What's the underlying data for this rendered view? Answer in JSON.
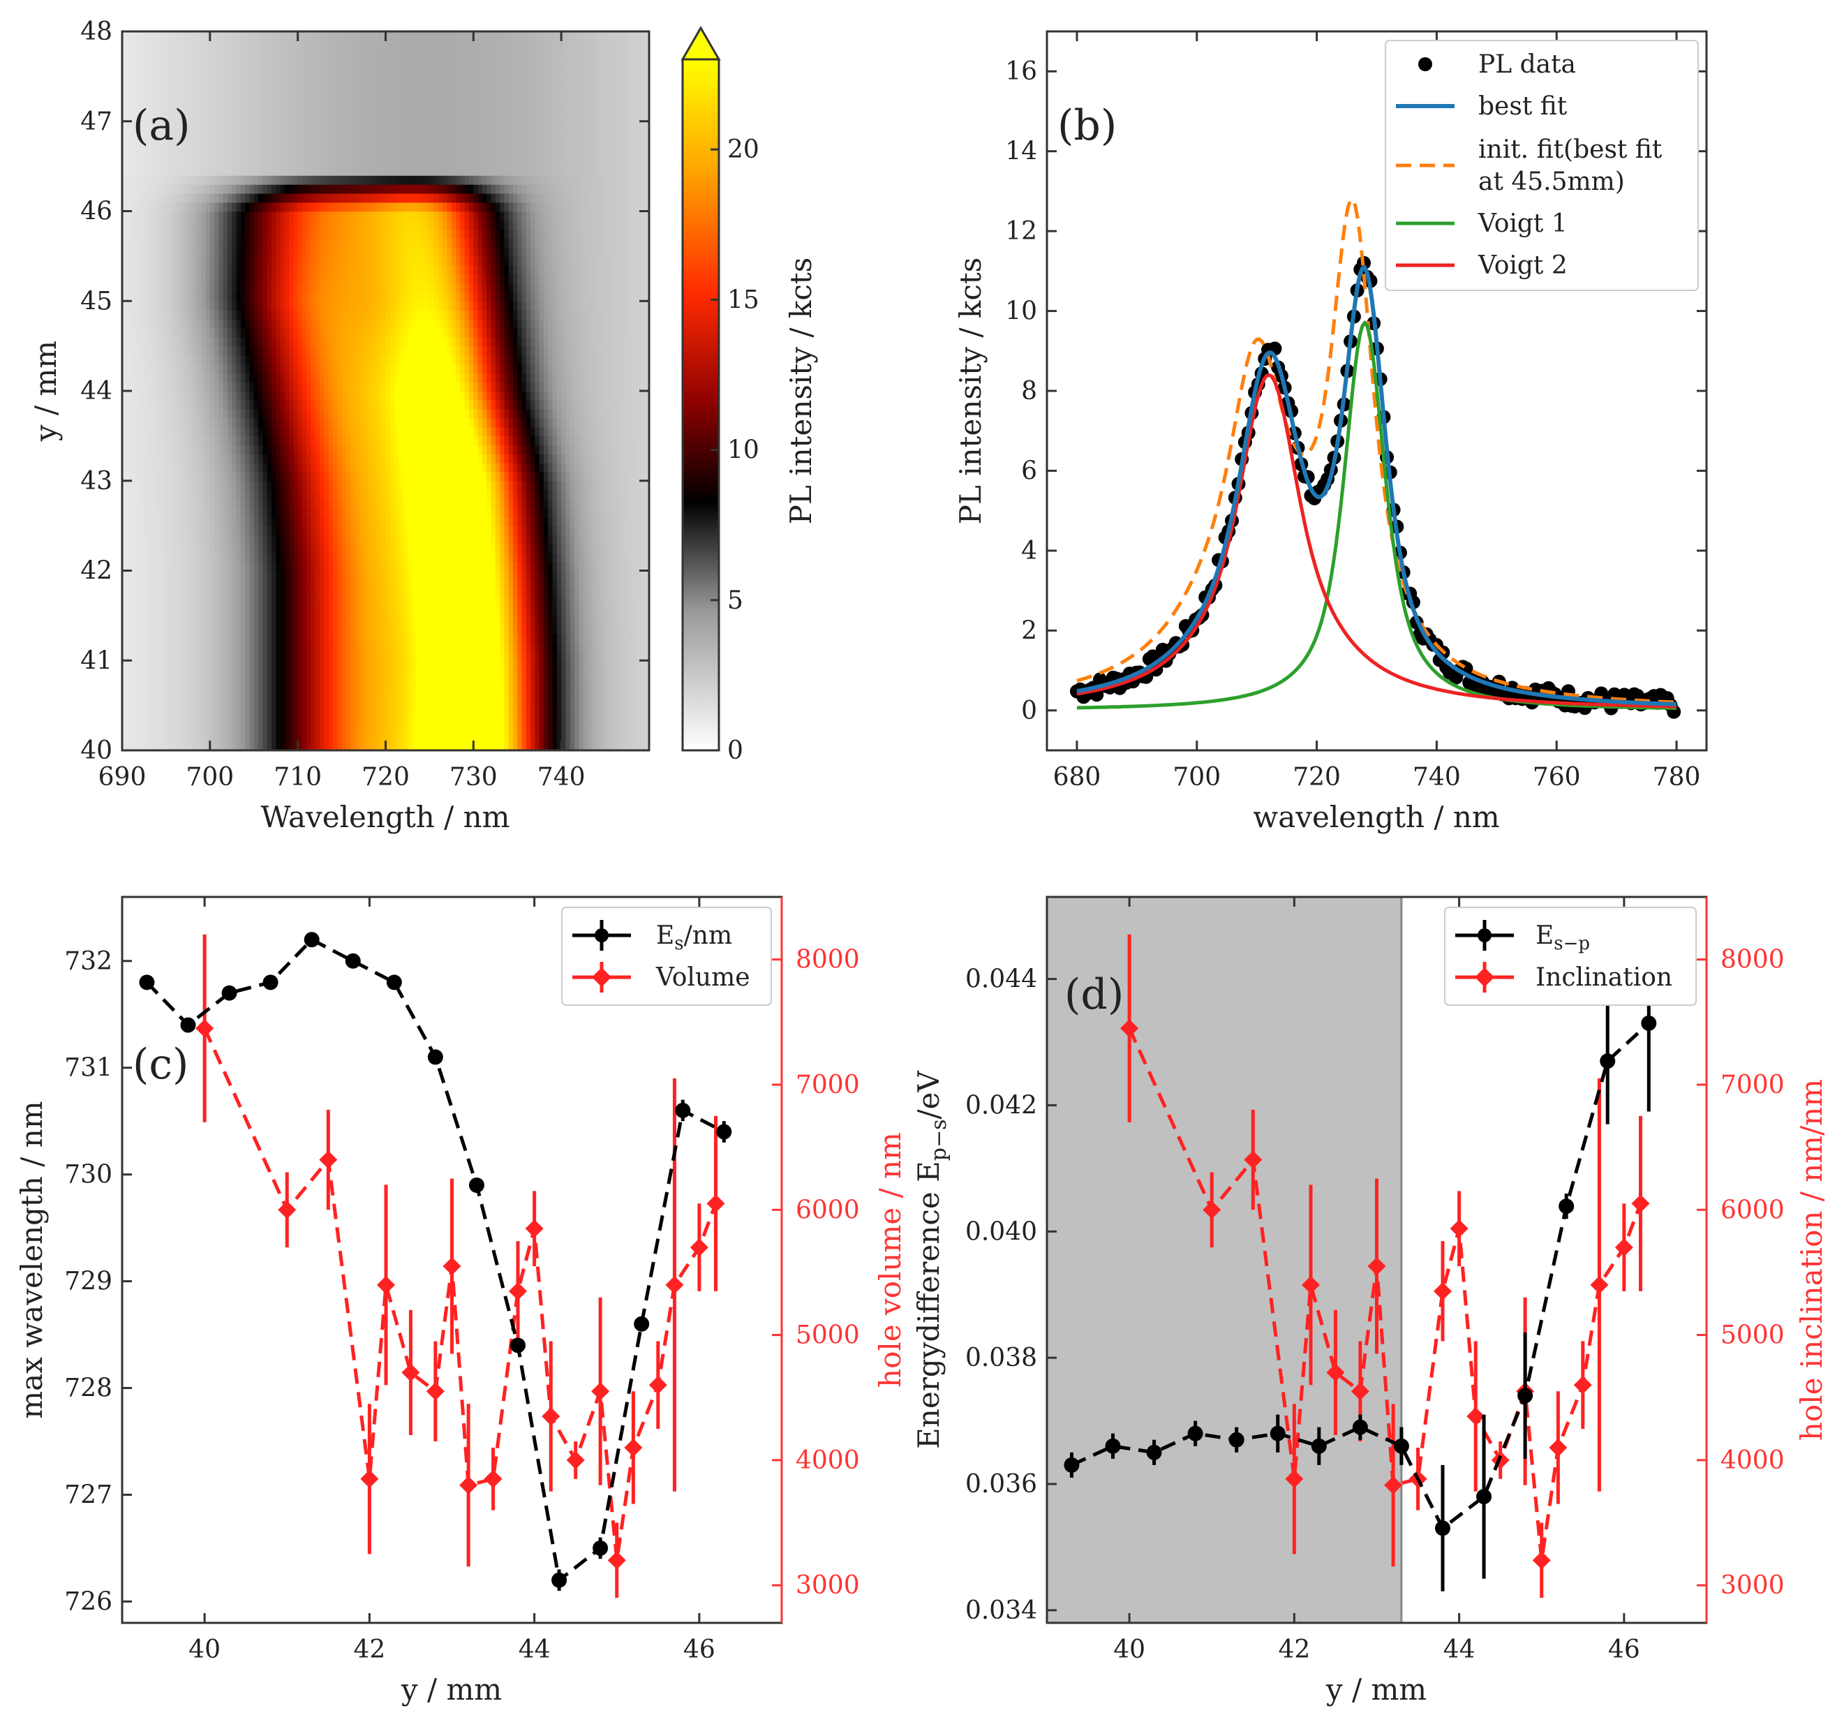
{
  "chart_data": [
    {
      "id": "a",
      "type": "heatmap",
      "panel_label": "(a)",
      "xlabel": "Wavelength / nm",
      "ylabel": "y / mm",
      "xlim": [
        690,
        750
      ],
      "ylim": [
        40,
        48
      ],
      "xticks": [
        690,
        700,
        710,
        720,
        730,
        740
      ],
      "yticks": [
        40,
        41,
        42,
        43,
        44,
        45,
        46,
        47,
        48
      ],
      "colorbar": {
        "label": "PL intensity / kcts",
        "range": [
          0,
          23
        ],
        "ticks": [
          0,
          5,
          10,
          15,
          20
        ],
        "colormap": [
          "#ffffff",
          "#9a9a9a",
          "#000000",
          "#8b0000",
          "#ff2a00",
          "#ffa500",
          "#ffff00"
        ]
      },
      "peaks": [
        {
          "y": 40,
          "w1": 718,
          "a1": 15,
          "w2": 730.5,
          "a2": 22
        },
        {
          "y": 41,
          "w1": 718,
          "a1": 15,
          "w2": 730.5,
          "a2": 21
        },
        {
          "y": 42,
          "w1": 718,
          "a1": 15,
          "w2": 730,
          "a2": 20
        },
        {
          "y": 43,
          "w1": 717,
          "a1": 15,
          "w2": 729,
          "a2": 20
        },
        {
          "y": 44,
          "w1": 715,
          "a1": 15,
          "w2": 727,
          "a2": 18
        },
        {
          "y": 45,
          "w1": 713,
          "a1": 15,
          "w2": 726,
          "a2": 16
        },
        {
          "y": 46,
          "w1": 713,
          "a1": 14,
          "w2": 725,
          "a2": 14
        },
        {
          "y": 47,
          "w1": 713,
          "a1": 0,
          "w2": 725,
          "a2": 0
        },
        {
          "y": 48,
          "w1": 713,
          "a1": 0,
          "w2": 725,
          "a2": 0
        }
      ]
    },
    {
      "id": "b",
      "type": "line",
      "panel_label": "(b)",
      "xlabel": "wavelength / nm",
      "ylabel": "PL intensity / kcts",
      "xlim": [
        675,
        785
      ],
      "ylim": [
        -1,
        17
      ],
      "xticks": [
        680,
        700,
        720,
        740,
        760,
        780
      ],
      "yticks": [
        0,
        2,
        4,
        6,
        8,
        10,
        12,
        14,
        16
      ],
      "series": [
        {
          "name": "PL data",
          "style": "points",
          "color": "#000000"
        },
        {
          "name": "best fit",
          "style": "solid",
          "color": "#1f77b4"
        },
        {
          "name": "init. fit(best fit",
          "name_line2": "at 45.5mm)",
          "style": "dashed",
          "color": "#ff7f0e"
        },
        {
          "name": "Voigt 1",
          "style": "solid",
          "color": "#2ca02c"
        },
        {
          "name": "Voigt 2",
          "style": "solid",
          "color": "#ee2222"
        }
      ],
      "components": {
        "voigt1": {
          "center": 728,
          "amplitude": 9.7,
          "gamma": 4.6,
          "sigma": 3.0
        },
        "voigt2": {
          "center": 712,
          "amplitude": 8.4,
          "gamma": 8.5,
          "sigma": 3.5
        },
        "init1": {
          "center": 726,
          "amplitude": 11.0,
          "gamma": 5.2,
          "sigma": 2.5
        },
        "init2": {
          "center": 710,
          "amplitude": 8.5,
          "gamma": 10.0,
          "sigma": 3.0
        },
        "x_range": [
          680,
          780
        ]
      }
    },
    {
      "id": "c",
      "type": "line",
      "panel_label": "(c)",
      "xlabel": "y / mm",
      "ylabel": "max wavelength / nm",
      "ylabel_right": "hole volume / nm",
      "xlim": [
        39,
        47
      ],
      "ylim": [
        725.8,
        732.6
      ],
      "ylim_right": [
        2700,
        8500
      ],
      "xticks": [
        40,
        42,
        44,
        46
      ],
      "yticks": [
        726,
        727,
        728,
        729,
        730,
        731,
        732
      ],
      "yticks_right": [
        3000,
        4000,
        5000,
        6000,
        7000,
        8000
      ],
      "series": [
        {
          "name": "E",
          "name_sub": "s",
          "name_suffix": "/nm",
          "color": "#000000",
          "axis": "left",
          "x": [
            39.3,
            39.8,
            40.3,
            40.8,
            41.3,
            41.8,
            42.3,
            42.8,
            43.3,
            43.8,
            44.3,
            44.8,
            45.3,
            45.8,
            46.3
          ],
          "y": [
            731.8,
            731.4,
            731.7,
            731.8,
            732.2,
            732.0,
            731.8,
            731.1,
            729.9,
            728.4,
            726.2,
            726.5,
            728.6,
            730.6,
            730.4
          ],
          "err": [
            0,
            0,
            0,
            0,
            0,
            0,
            0,
            0,
            0,
            0,
            0.1,
            0.1,
            0,
            0.1,
            0.1
          ]
        },
        {
          "name": "Volume",
          "color": "#ff2222",
          "axis": "right",
          "x": [
            40.0,
            41.0,
            41.5,
            42.0,
            42.2,
            42.5,
            42.8,
            43.0,
            43.2,
            43.5,
            43.8,
            44.0,
            44.2,
            44.5,
            44.8,
            45.0,
            45.2,
            45.5,
            45.7,
            46.0,
            46.2
          ],
          "y": [
            7450,
            6000,
            6400,
            3850,
            5400,
            4700,
            4550,
            5550,
            3800,
            3850,
            5350,
            5850,
            4350,
            4000,
            4550,
            3200,
            4100,
            4600,
            5400,
            5700,
            6050
          ],
          "err": [
            750,
            300,
            400,
            600,
            800,
            500,
            400,
            700,
            650,
            250,
            400,
            300,
            600,
            150,
            750,
            300,
            450,
            350,
            1650,
            350,
            700
          ]
        }
      ]
    },
    {
      "id": "d",
      "type": "line",
      "panel_label": "(d)",
      "xlabel": "y / mm",
      "ylabel": "Energydifference E",
      "ylabel_sub": "p−s",
      "ylabel_suffix": "/eV",
      "ylabel_right": "hole inclination / nm/nm",
      "xlim": [
        39,
        47
      ],
      "ylim": [
        0.0338,
        0.0453
      ],
      "ylim_right": [
        2700,
        8500
      ],
      "xticks": [
        40,
        42,
        44,
        46
      ],
      "yticks": [
        0.034,
        0.036,
        0.038,
        0.04,
        0.042,
        0.044
      ],
      "ytick_labels": [
        "0.034",
        "0.036",
        "0.038",
        "0.040",
        "0.042",
        "0.044"
      ],
      "yticks_right": [
        3000,
        4000,
        5000,
        6000,
        7000,
        8000
      ],
      "shaded_x": [
        39,
        43.3
      ],
      "series": [
        {
          "name": "E",
          "name_sub": "s−p",
          "color": "#000000",
          "axis": "left",
          "x": [
            39.3,
            39.8,
            40.3,
            40.8,
            41.3,
            41.8,
            42.3,
            42.8,
            43.3,
            43.8,
            44.3,
            44.8,
            45.3,
            45.8,
            46.3
          ],
          "y": [
            0.0363,
            0.0366,
            0.0365,
            0.0368,
            0.0367,
            0.0368,
            0.0366,
            0.0369,
            0.0366,
            0.0353,
            0.0358,
            0.0374,
            0.0404,
            0.0427,
            0.0433
          ],
          "err": [
            0.0002,
            0.0002,
            0.0002,
            0.0002,
            0.0002,
            0.0003,
            0.0003,
            0.0002,
            0.0003,
            0.001,
            0.0013,
            0.001,
            0.0002,
            0.001,
            0.0014
          ]
        },
        {
          "name": "Inclination",
          "color": "#ff2222",
          "axis": "right",
          "x": [
            40.0,
            41.0,
            41.5,
            42.0,
            42.2,
            42.5,
            42.8,
            43.0,
            43.2,
            43.5,
            43.8,
            44.0,
            44.2,
            44.5,
            44.8,
            45.0,
            45.2,
            45.5,
            45.7,
            46.0,
            46.2
          ],
          "y": [
            7450,
            6000,
            6400,
            3850,
            5400,
            4700,
            4550,
            5550,
            3800,
            3850,
            5350,
            5850,
            4350,
            4000,
            4550,
            3200,
            4100,
            4600,
            5400,
            5700,
            6050
          ],
          "err": [
            750,
            300,
            400,
            600,
            800,
            500,
            400,
            700,
            650,
            250,
            400,
            300,
            600,
            150,
            750,
            300,
            450,
            350,
            1650,
            350,
            700
          ]
        }
      ]
    }
  ]
}
